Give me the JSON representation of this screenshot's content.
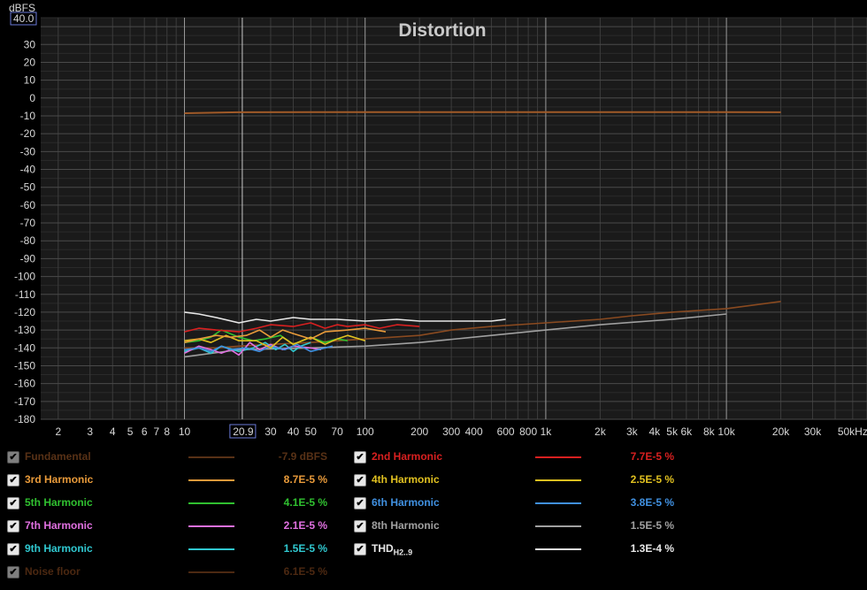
{
  "chart_data": {
    "type": "line",
    "title": "Distortion",
    "ylabel": "dBFS",
    "xlabel": "",
    "x_unit": "kHz",
    "x_scale": "log",
    "xlim": [
      1.6,
      60000
    ],
    "ylim": [
      -180,
      45
    ],
    "y_top_box": "40.0",
    "cursor_x_label": "20.9",
    "cursor_x_value": 20.9,
    "y_ticks": [
      40,
      30,
      20,
      10,
      0,
      -10,
      -20,
      -30,
      -40,
      -50,
      -60,
      -70,
      -80,
      -90,
      -100,
      -110,
      -120,
      -130,
      -140,
      -150,
      -160,
      -170,
      -180
    ],
    "y_tick_labels": [
      "30",
      "20",
      "10",
      "0",
      "-10",
      "-20",
      "-30",
      "-40",
      "-50",
      "-60",
      "-70",
      "-80",
      "-90",
      "-100",
      "-110",
      "-120",
      "-130",
      "-140",
      "-150",
      "-160",
      "-170",
      "-180"
    ],
    "x_ticks": [
      2,
      3,
      4,
      5,
      6,
      7,
      8,
      10,
      30,
      40,
      50,
      70,
      100,
      200,
      300,
      400,
      600,
      800,
      1000,
      2000,
      3000,
      4000,
      5000,
      6000,
      8000,
      10000,
      20000,
      30000,
      50000
    ],
    "x_tick_labels": [
      "2",
      "3",
      "4",
      "5",
      "6",
      "7",
      "8",
      "10",
      "30",
      "40",
      "50",
      "70",
      "100",
      "200",
      "300",
      "400",
      "600",
      "800",
      "1k",
      "2k",
      "3k",
      "4k",
      "5k",
      "6k",
      "8k",
      "10k",
      "20k",
      "30k",
      "50kHz"
    ],
    "grid": true,
    "legend_position": "bottom",
    "series": [
      {
        "name": "Fundamental",
        "color": "#a05a28",
        "display_value": "-7.9 dBFS",
        "x": [
          10,
          20,
          50,
          100,
          1000,
          10000,
          20000
        ],
        "y": [
          -8.5,
          -8.0,
          -7.9,
          -7.9,
          -7.9,
          -7.9,
          -8.0
        ]
      },
      {
        "name": "2nd Harmonic",
        "color": "#d82020",
        "display_value": "7.7E-5 %",
        "x": [
          10,
          12,
          15,
          20,
          25,
          30,
          40,
          50,
          60,
          70,
          80,
          100,
          120,
          150,
          200
        ],
        "y": [
          -131,
          -129,
          -130,
          -131,
          -129,
          -127,
          -128,
          -126,
          -129,
          -127,
          -128,
          -127,
          -129,
          -127,
          -128
        ]
      },
      {
        "name": "3rd Harmonic",
        "color": "#e89a3a",
        "display_value": "8.7E-5 %",
        "x": [
          10,
          12,
          15,
          18,
          22,
          26,
          30,
          35,
          40,
          50,
          60,
          80,
          100,
          130
        ],
        "y": [
          -137,
          -135,
          -133,
          -134,
          -133,
          -130,
          -134,
          -130,
          -132,
          -135,
          -131,
          -130,
          -129,
          -131
        ]
      },
      {
        "name": "4th Harmonic",
        "color": "#e0c020",
        "display_value": "2.5E-5 %",
        "x": [
          10,
          12,
          14,
          17,
          20,
          25,
          30,
          35,
          40,
          50,
          60,
          70,
          80,
          100
        ],
        "y": [
          -136,
          -135,
          -137,
          -133,
          -136,
          -136,
          -140,
          -134,
          -138,
          -134,
          -138,
          -135,
          -133,
          -136
        ]
      },
      {
        "name": "5th Harmonic",
        "color": "#30c030",
        "display_value": "4.1E-5 %",
        "x": [
          10,
          12,
          14,
          16,
          20,
          24,
          28,
          34,
          40,
          50,
          60,
          70,
          80
        ],
        "y": [
          -137,
          -136,
          -134,
          -130,
          -134,
          -136,
          -135,
          -133,
          -138,
          -134,
          -137,
          -135,
          -136
        ]
      },
      {
        "name": "6th Harmonic",
        "color": "#4090e0",
        "display_value": "3.8E-5 %",
        "x": [
          10,
          12,
          14,
          16,
          18,
          22,
          26,
          30,
          36,
          42,
          50,
          60,
          66
        ],
        "y": [
          -141,
          -140,
          -142,
          -139,
          -141,
          -140,
          -142,
          -139,
          -141,
          -138,
          -142,
          -140,
          -139
        ]
      },
      {
        "name": "7th Harmonic",
        "color": "#e070e0",
        "display_value": "2.1E-5 %",
        "x": [
          10,
          12,
          14,
          16,
          18,
          20,
          23,
          26,
          30,
          35,
          40,
          50,
          57
        ],
        "y": [
          -143,
          -139,
          -141,
          -143,
          -141,
          -144,
          -137,
          -141,
          -138,
          -141,
          -139,
          -140,
          -141
        ]
      },
      {
        "name": "8th Harmonic",
        "color": "#a0a0a0",
        "display_value": "1.5E-5 %",
        "x": [
          10,
          20,
          50,
          100,
          200,
          500,
          1000,
          2000,
          5000,
          10000
        ],
        "y": [
          -145,
          -141,
          -140,
          -139,
          -137,
          -133,
          -130,
          -127,
          -124,
          -121
        ]
      },
      {
        "name": "9th Harmonic",
        "color": "#30c8d0",
        "display_value": "1.5E-5 %",
        "x": [
          10,
          12,
          14,
          16,
          20,
          24,
          28,
          32,
          36,
          40,
          44,
          50
        ],
        "y": [
          -142,
          -140,
          -143,
          -139,
          -142,
          -140,
          -137,
          -141,
          -138,
          -142,
          -139,
          -137
        ]
      },
      {
        "name": "THD",
        "name_sub": "H2..9",
        "color": "#e8e8e8",
        "display_value": "1.3E-4 %",
        "x": [
          10,
          12,
          15,
          20,
          25,
          30,
          40,
          50,
          70,
          100,
          150,
          200,
          300,
          400,
          500,
          600
        ],
        "y": [
          -120,
          -121,
          -123,
          -126,
          -124,
          -125,
          -123,
          -124,
          -124,
          -125,
          -124,
          -125,
          -125,
          -125,
          -125,
          -124
        ]
      },
      {
        "name": "Noise floor",
        "color": "#8a4a20",
        "display_value": "6.1E-5 %",
        "x": [
          10,
          15,
          20,
          30,
          50,
          100,
          200,
          300,
          500,
          1000,
          2000,
          3000,
          5000,
          10000,
          20000
        ],
        "y": [
          -140,
          -140,
          -139,
          -138,
          -137,
          -135,
          -133,
          -130,
          -128,
          -126,
          -124,
          -122,
          -120,
          -118,
          -114
        ]
      }
    ]
  },
  "legend": {
    "check_glyph": "✔",
    "items": [
      {
        "name": "Fundamental",
        "value": "-7.9 dBFS",
        "color": "#a05a28",
        "dim": true
      },
      {
        "name": "2nd Harmonic",
        "value": "7.7E-5 %",
        "color": "#d82020",
        "dim": false
      },
      {
        "name": "3rd Harmonic",
        "value": "8.7E-5 %",
        "color": "#e89a3a",
        "dim": false
      },
      {
        "name": "4th Harmonic",
        "value": "2.5E-5 %",
        "color": "#e0c020",
        "dim": false
      },
      {
        "name": "5th Harmonic",
        "value": "4.1E-5 %",
        "color": "#30c030",
        "dim": false
      },
      {
        "name": "6th Harmonic",
        "value": "3.8E-5 %",
        "color": "#4090e0",
        "dim": false
      },
      {
        "name": "7th Harmonic",
        "value": "2.1E-5 %",
        "color": "#e070e0",
        "dim": false
      },
      {
        "name": "8th Harmonic",
        "value": "1.5E-5 %",
        "color": "#a0a0a0",
        "dim": false
      },
      {
        "name": "9th Harmonic",
        "value": "1.5E-5 %",
        "color": "#30c8d0",
        "dim": false
      },
      {
        "name": "THD",
        "name_sub": "H2..9",
        "value": "1.3E-4 %",
        "color": "#e8e8e8",
        "dim": false
      },
      {
        "name": "Noise floor",
        "value": "6.1E-5 %",
        "color": "#8a4a20",
        "dim": true
      }
    ]
  }
}
